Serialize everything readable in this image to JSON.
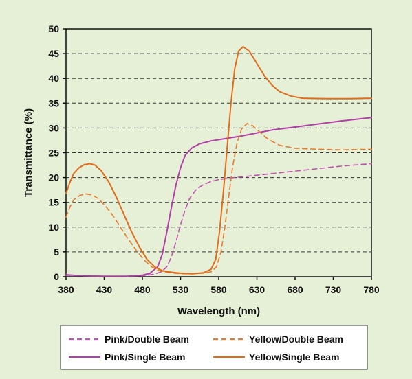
{
  "chart_data": {
    "type": "line",
    "title": "",
    "xlabel": "Wavelength (nm)",
    "ylabel": "Transmittance (%)",
    "xlim": [
      380,
      780
    ],
    "ylim": [
      0,
      50
    ],
    "xticks": [
      380,
      430,
      480,
      530,
      580,
      630,
      680,
      730,
      780
    ],
    "yticks": [
      0,
      5,
      10,
      15,
      20,
      25,
      30,
      35,
      40,
      45,
      50
    ],
    "grid": "horizontal-dashed",
    "legend_position": "bottom",
    "series": [
      {
        "name": "Pink/Double Beam",
        "color": "#c050b0",
        "style": "dashed",
        "points": [
          [
            380,
            0.3
          ],
          [
            400,
            0.2
          ],
          [
            430,
            0.1
          ],
          [
            460,
            0.1
          ],
          [
            480,
            0.2
          ],
          [
            495,
            0.5
          ],
          [
            505,
            1.0
          ],
          [
            512,
            2.0
          ],
          [
            518,
            4.0
          ],
          [
            524,
            7.0
          ],
          [
            530,
            10.5
          ],
          [
            536,
            13.5
          ],
          [
            542,
            15.8
          ],
          [
            550,
            17.5
          ],
          [
            560,
            18.6
          ],
          [
            570,
            19.2
          ],
          [
            580,
            19.6
          ],
          [
            600,
            20.0
          ],
          [
            620,
            20.3
          ],
          [
            650,
            20.8
          ],
          [
            680,
            21.3
          ],
          [
            710,
            21.8
          ],
          [
            740,
            22.3
          ],
          [
            780,
            22.8
          ]
        ]
      },
      {
        "name": "Pink/Single Beam",
        "color": "#b040a8",
        "style": "solid",
        "points": [
          [
            380,
            0.4
          ],
          [
            400,
            0.2
          ],
          [
            430,
            0.1
          ],
          [
            460,
            0.1
          ],
          [
            480,
            0.3
          ],
          [
            490,
            0.7
          ],
          [
            500,
            2.0
          ],
          [
            506,
            4.5
          ],
          [
            512,
            9.0
          ],
          [
            518,
            14.0
          ],
          [
            524,
            18.5
          ],
          [
            530,
            22.0
          ],
          [
            536,
            24.5
          ],
          [
            545,
            26.0
          ],
          [
            555,
            26.8
          ],
          [
            570,
            27.4
          ],
          [
            590,
            27.9
          ],
          [
            610,
            28.4
          ],
          [
            630,
            29.0
          ],
          [
            650,
            29.6
          ],
          [
            680,
            30.2
          ],
          [
            710,
            30.8
          ],
          [
            740,
            31.4
          ],
          [
            780,
            32.1
          ]
        ]
      },
      {
        "name": "Yellow/Double Beam",
        "color": "#e87a30",
        "style": "dashed",
        "points": [
          [
            380,
            12.0
          ],
          [
            385,
            14.0
          ],
          [
            390,
            15.5
          ],
          [
            398,
            16.4
          ],
          [
            406,
            16.7
          ],
          [
            414,
            16.5
          ],
          [
            422,
            15.8
          ],
          [
            432,
            14.2
          ],
          [
            442,
            12.2
          ],
          [
            452,
            9.8
          ],
          [
            462,
            7.5
          ],
          [
            472,
            5.3
          ],
          [
            482,
            3.4
          ],
          [
            492,
            2.0
          ],
          [
            502,
            1.2
          ],
          [
            515,
            0.8
          ],
          [
            530,
            0.6
          ],
          [
            545,
            0.6
          ],
          [
            560,
            0.7
          ],
          [
            570,
            1.0
          ],
          [
            577,
            2.0
          ],
          [
            583,
            5.0
          ],
          [
            588,
            10.0
          ],
          [
            593,
            16.0
          ],
          [
            598,
            22.0
          ],
          [
            604,
            27.0
          ],
          [
            610,
            29.8
          ],
          [
            617,
            30.9
          ],
          [
            625,
            30.4
          ],
          [
            635,
            29.0
          ],
          [
            645,
            27.7
          ],
          [
            660,
            26.5
          ],
          [
            680,
            25.9
          ],
          [
            710,
            25.7
          ],
          [
            740,
            25.6
          ],
          [
            780,
            25.7
          ]
        ]
      },
      {
        "name": "Yellow/Single Beam",
        "color": "#e06c1c",
        "style": "solid",
        "points": [
          [
            380,
            16.8
          ],
          [
            385,
            19.0
          ],
          [
            390,
            20.8
          ],
          [
            397,
            22.0
          ],
          [
            404,
            22.6
          ],
          [
            411,
            22.8
          ],
          [
            418,
            22.5
          ],
          [
            426,
            21.4
          ],
          [
            436,
            19.1
          ],
          [
            446,
            16.0
          ],
          [
            456,
            12.5
          ],
          [
            466,
            9.0
          ],
          [
            476,
            6.0
          ],
          [
            486,
            3.5
          ],
          [
            496,
            2.0
          ],
          [
            506,
            1.2
          ],
          [
            518,
            0.9
          ],
          [
            530,
            0.7
          ],
          [
            545,
            0.6
          ],
          [
            560,
            0.8
          ],
          [
            570,
            1.5
          ],
          [
            576,
            3.5
          ],
          [
            581,
            9.0
          ],
          [
            586,
            17.0
          ],
          [
            591,
            26.0
          ],
          [
            596,
            35.0
          ],
          [
            601,
            42.0
          ],
          [
            606,
            45.5
          ],
          [
            612,
            46.4
          ],
          [
            620,
            45.5
          ],
          [
            630,
            43.0
          ],
          [
            640,
            40.5
          ],
          [
            650,
            38.6
          ],
          [
            660,
            37.3
          ],
          [
            675,
            36.4
          ],
          [
            690,
            36.0
          ],
          [
            720,
            35.9
          ],
          [
            750,
            35.9
          ],
          [
            780,
            36.0
          ]
        ]
      }
    ]
  }
}
